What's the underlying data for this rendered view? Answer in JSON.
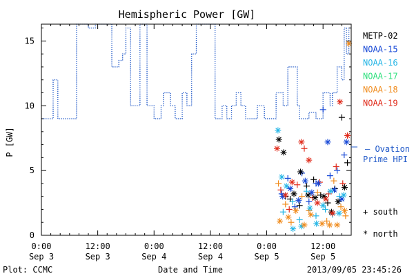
{
  "chart_data": {
    "type": "scatter",
    "title": "Hemispheric Power [GW]",
    "ylabel": "P [GW]",
    "xlabel": "Date and Time",
    "x_unit": "hours since 2013-09-03 00:00 UT",
    "xlim": [
      0,
      66
    ],
    "ylim": [
      0,
      16.3
    ],
    "grid": false,
    "x_ticks": [
      {
        "x": 0,
        "time": "0:00",
        "date": "Sep 3"
      },
      {
        "x": 12,
        "time": "12:00",
        "date": "Sep 3"
      },
      {
        "x": 24,
        "time": "0:00",
        "date": "Sep 4"
      },
      {
        "x": 36,
        "time": "12:00",
        "date": "Sep 4"
      },
      {
        "x": 48,
        "time": "0:00",
        "date": "Sep 5"
      },
      {
        "x": 60,
        "time": "12:00",
        "date": "Sep 5"
      }
    ],
    "y_ticks": [
      0,
      5,
      10,
      15
    ],
    "footer_left": "Plot: CCMC",
    "footer_right": "2013/09/05 23:45:26",
    "legend_marker_south": "+ south",
    "legend_marker_north": "* north",
    "series": [
      {
        "name": "METP-02",
        "color": "#000000"
      },
      {
        "name": "NOAA-15",
        "color": "#1446d6"
      },
      {
        "name": "NOAA-16",
        "color": "#25b6e6"
      },
      {
        "name": "NOAA-17",
        "color": "#2ee07d"
      },
      {
        "name": "NOAA-18",
        "color": "#f08c1e"
      },
      {
        "name": "NOAA-19",
        "color": "#e02a1a"
      }
    ],
    "ovation": {
      "label_line1": "— Ovation",
      "label_line2": "Prime HPI",
      "color": "#1f58c8",
      "steps": [
        [
          0,
          9
        ],
        [
          2.5,
          12
        ],
        [
          3.5,
          9
        ],
        [
          7.5,
          16.3
        ],
        [
          10,
          16
        ],
        [
          11.5,
          16.3
        ],
        [
          15,
          13
        ],
        [
          16.5,
          13.5
        ],
        [
          17.3,
          14
        ],
        [
          18,
          16
        ],
        [
          19,
          10
        ],
        [
          21,
          16.3
        ],
        [
          22.5,
          10
        ],
        [
          24,
          9
        ],
        [
          25.5,
          10
        ],
        [
          26,
          11
        ],
        [
          27.5,
          10
        ],
        [
          28.5,
          9
        ],
        [
          30,
          11
        ],
        [
          31,
          10
        ],
        [
          32,
          14
        ],
        [
          33,
          16.3
        ],
        [
          37,
          9
        ],
        [
          38.5,
          10
        ],
        [
          39.5,
          9
        ],
        [
          40.5,
          10
        ],
        [
          41.5,
          11
        ],
        [
          42.5,
          10
        ],
        [
          43.5,
          9
        ],
        [
          46,
          10
        ],
        [
          47.5,
          9
        ],
        [
          50,
          11
        ],
        [
          51.5,
          10
        ],
        [
          52.5,
          13
        ],
        [
          54.5,
          10
        ],
        [
          55,
          9
        ],
        [
          57,
          9.5
        ],
        [
          58.5,
          9
        ],
        [
          60,
          11
        ],
        [
          61.5,
          10
        ],
        [
          62,
          11
        ],
        [
          63,
          13
        ],
        [
          64,
          12
        ],
        [
          64.5,
          16
        ],
        [
          65,
          14
        ],
        [
          65.5,
          16
        ],
        [
          66,
          16
        ]
      ]
    },
    "south_points": [
      {
        "s": 0,
        "x": 52.0,
        "y": 3.0
      },
      {
        "s": 0,
        "x": 53.0,
        "y": 2.8
      },
      {
        "s": 0,
        "x": 55.0,
        "y": 2.3
      },
      {
        "s": 0,
        "x": 56.5,
        "y": 3.8
      },
      {
        "s": 0,
        "x": 58.0,
        "y": 4.3
      },
      {
        "s": 0,
        "x": 59.5,
        "y": 3.1
      },
      {
        "s": 0,
        "x": 61.0,
        "y": 2.5
      },
      {
        "s": 0,
        "x": 62.5,
        "y": 3.6
      },
      {
        "s": 0,
        "x": 64.0,
        "y": 9.1
      },
      {
        "s": 0,
        "x": 65.2,
        "y": 5.6
      },
      {
        "s": 1,
        "x": 51.2,
        "y": 3.2
      },
      {
        "s": 1,
        "x": 52.5,
        "y": 4.4
      },
      {
        "s": 1,
        "x": 54.0,
        "y": 2.2
      },
      {
        "s": 1,
        "x": 55.5,
        "y": 4.8
      },
      {
        "s": 1,
        "x": 57.0,
        "y": 2.6
      },
      {
        "s": 1,
        "x": 58.5,
        "y": 4.0
      },
      {
        "s": 1,
        "x": 60.0,
        "y": 9.7
      },
      {
        "s": 1,
        "x": 61.5,
        "y": 4.6
      },
      {
        "s": 1,
        "x": 63.0,
        "y": 5.0
      },
      {
        "s": 1,
        "x": 64.5,
        "y": 6.2
      },
      {
        "s": 2,
        "x": 51.5,
        "y": 1.8
      },
      {
        "s": 2,
        "x": 53.5,
        "y": 2.6
      },
      {
        "s": 2,
        "x": 55.0,
        "y": 1.2
      },
      {
        "s": 2,
        "x": 56.5,
        "y": 3.4
      },
      {
        "s": 2,
        "x": 58.5,
        "y": 1.5
      },
      {
        "s": 2,
        "x": 60.5,
        "y": 2.0
      },
      {
        "s": 2,
        "x": 62.0,
        "y": 1.6
      },
      {
        "s": 2,
        "x": 63.5,
        "y": 3.0
      },
      {
        "s": 4,
        "x": 50.5,
        "y": 4.0
      },
      {
        "s": 4,
        "x": 52.0,
        "y": 2.4
      },
      {
        "s": 4,
        "x": 53.2,
        "y": 1.0
      },
      {
        "s": 4,
        "x": 55.5,
        "y": 3.0
      },
      {
        "s": 4,
        "x": 57.0,
        "y": 1.9
      },
      {
        "s": 4,
        "x": 58.8,
        "y": 3.3
      },
      {
        "s": 4,
        "x": 60.8,
        "y": 1.1
      },
      {
        "s": 4,
        "x": 62.3,
        "y": 4.2
      },
      {
        "s": 4,
        "x": 63.8,
        "y": 2.2
      },
      {
        "s": 4,
        "x": 64.8,
        "y": 1.5
      },
      {
        "s": 5,
        "x": 51.0,
        "y": 3.5
      },
      {
        "s": 5,
        "x": 52.8,
        "y": 2.0
      },
      {
        "s": 5,
        "x": 54.5,
        "y": 3.9
      },
      {
        "s": 5,
        "x": 56.0,
        "y": 6.7
      },
      {
        "s": 5,
        "x": 57.8,
        "y": 2.9
      },
      {
        "s": 5,
        "x": 59.3,
        "y": 4.1
      },
      {
        "s": 5,
        "x": 61.2,
        "y": 3.2
      },
      {
        "s": 5,
        "x": 62.8,
        "y": 5.3
      },
      {
        "s": 5,
        "x": 64.2,
        "y": 4.0
      }
    ],
    "north_points": [
      {
        "s": 0,
        "x": 50.6,
        "y": 7.4
      },
      {
        "s": 0,
        "x": 51.6,
        "y": 6.4
      },
      {
        "s": 0,
        "x": 53.8,
        "y": 3.2
      },
      {
        "s": 0,
        "x": 55.2,
        "y": 4.9
      },
      {
        "s": 0,
        "x": 56.8,
        "y": 3.1
      },
      {
        "s": 0,
        "x": 58.3,
        "y": 2.9
      },
      {
        "s": 0,
        "x": 60.2,
        "y": 3.0
      },
      {
        "s": 0,
        "x": 61.8,
        "y": 1.8
      },
      {
        "s": 0,
        "x": 63.2,
        "y": 2.6
      },
      {
        "s": 0,
        "x": 64.6,
        "y": 3.7
      },
      {
        "s": 1,
        "x": 51.4,
        "y": 3.0
      },
      {
        "s": 1,
        "x": 53.0,
        "y": 3.6
      },
      {
        "s": 1,
        "x": 54.8,
        "y": 2.7
      },
      {
        "s": 1,
        "x": 56.2,
        "y": 4.2
      },
      {
        "s": 1,
        "x": 57.6,
        "y": 3.3
      },
      {
        "s": 1,
        "x": 59.0,
        "y": 4.0
      },
      {
        "s": 1,
        "x": 61.0,
        "y": 7.2
      },
      {
        "s": 1,
        "x": 62.4,
        "y": 3.5
      },
      {
        "s": 1,
        "x": 64.0,
        "y": 2.8
      },
      {
        "s": 1,
        "x": 65.0,
        "y": 7.2
      },
      {
        "s": 2,
        "x": 50.4,
        "y": 8.1
      },
      {
        "s": 2,
        "x": 51.2,
        "y": 4.5
      },
      {
        "s": 2,
        "x": 52.2,
        "y": 3.8
      },
      {
        "s": 2,
        "x": 53.6,
        "y": 0.5
      },
      {
        "s": 2,
        "x": 55.4,
        "y": 0.7
      },
      {
        "s": 2,
        "x": 57.2,
        "y": 2.1
      },
      {
        "s": 2,
        "x": 58.6,
        "y": 0.9
      },
      {
        "s": 2,
        "x": 60.0,
        "y": 2.3
      },
      {
        "s": 2,
        "x": 61.6,
        "y": 3.4
      },
      {
        "s": 2,
        "x": 63.4,
        "y": 1.7
      },
      {
        "s": 2,
        "x": 64.4,
        "y": 3.1
      },
      {
        "s": 4,
        "x": 50.8,
        "y": 1.1
      },
      {
        "s": 4,
        "x": 52.6,
        "y": 1.4
      },
      {
        "s": 4,
        "x": 54.2,
        "y": 1.9
      },
      {
        "s": 4,
        "x": 56.0,
        "y": 0.8
      },
      {
        "s": 4,
        "x": 57.4,
        "y": 1.6
      },
      {
        "s": 4,
        "x": 59.8,
        "y": 0.9
      },
      {
        "s": 4,
        "x": 61.4,
        "y": 0.8
      },
      {
        "s": 4,
        "x": 63.0,
        "y": 0.8
      },
      {
        "s": 4,
        "x": 64.6,
        "y": 1.9
      },
      {
        "s": 4,
        "x": 65.5,
        "y": 14.8
      },
      {
        "s": 5,
        "x": 50.2,
        "y": 6.7
      },
      {
        "s": 5,
        "x": 52.0,
        "y": 3.1
      },
      {
        "s": 5,
        "x": 53.4,
        "y": 4.1
      },
      {
        "s": 5,
        "x": 55.4,
        "y": 7.2
      },
      {
        "s": 5,
        "x": 57.0,
        "y": 5.8
      },
      {
        "s": 5,
        "x": 58.8,
        "y": 2.5
      },
      {
        "s": 5,
        "x": 60.6,
        "y": 2.8
      },
      {
        "s": 5,
        "x": 62.0,
        "y": 1.7
      },
      {
        "s": 5,
        "x": 63.6,
        "y": 10.3
      },
      {
        "s": 5,
        "x": 65.2,
        "y": 7.7
      }
    ]
  }
}
